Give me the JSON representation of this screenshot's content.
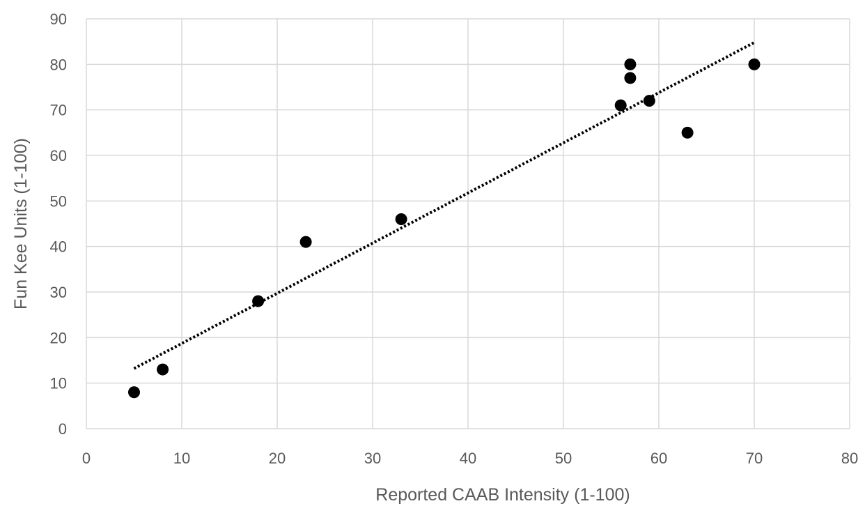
{
  "chart_data": {
    "type": "scatter",
    "title": "",
    "xlabel": "Reported CAAB Intensity (1-100)",
    "ylabel": "Fun Kee Units (1-100)",
    "xlim": [
      0,
      80
    ],
    "ylim": [
      0,
      90
    ],
    "x_ticks": [
      "0",
      "10",
      "20",
      "30",
      "40",
      "50",
      "60",
      "70",
      "80"
    ],
    "y_ticks": [
      "0",
      "10",
      "20",
      "30",
      "40",
      "50",
      "60",
      "70",
      "80",
      "90"
    ],
    "grid": true,
    "legend": "none",
    "series": [
      {
        "points": [
          {
            "x": 5,
            "y": 8
          },
          {
            "x": 8,
            "y": 13
          },
          {
            "x": 18,
            "y": 28
          },
          {
            "x": 23,
            "y": 41
          },
          {
            "x": 33,
            "y": 46
          },
          {
            "x": 56,
            "y": 71
          },
          {
            "x": 57,
            "y": 80
          },
          {
            "x": 57,
            "y": 77
          },
          {
            "x": 59,
            "y": 72
          },
          {
            "x": 63,
            "y": 65
          },
          {
            "x": 70,
            "y": 80
          }
        ],
        "color": "#000000"
      }
    ],
    "trendline": {
      "type": "linear",
      "style": "dotted",
      "color": "#000000",
      "from": {
        "x": 5,
        "y": 13.2
      },
      "to": {
        "x": 70,
        "y": 84.8
      }
    },
    "colors": {
      "grid": "#d9d9d9",
      "axis_text": "#595959",
      "marker": "#000000"
    }
  }
}
